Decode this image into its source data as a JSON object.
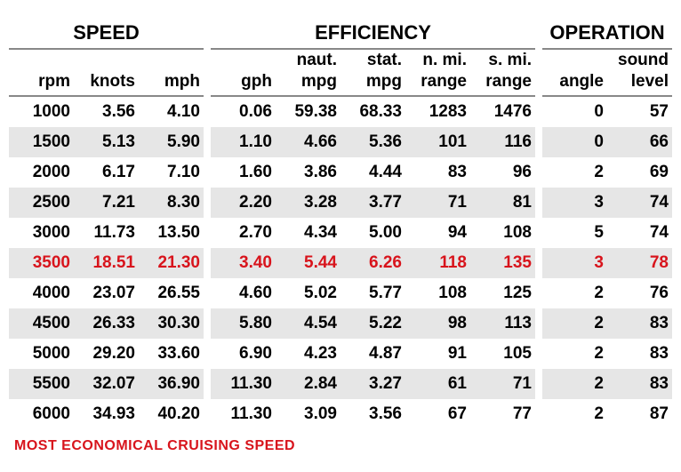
{
  "type": "table",
  "highlight_color": "#d8141c",
  "row_stripe_color": "#e6e6e6",
  "background_color": "#ffffff",
  "font_family": "Arial",
  "groups": [
    {
      "label": "SPEED",
      "span": 3
    },
    {
      "label": "EFFICIENCY",
      "span": 5
    },
    {
      "label": "OPERATION",
      "span": 2
    }
  ],
  "columns": [
    {
      "top": "",
      "bottom": "rpm"
    },
    {
      "top": "",
      "bottom": "knots"
    },
    {
      "top": "",
      "bottom": "mph"
    },
    {
      "top": "",
      "bottom": "gph"
    },
    {
      "top": "naut.",
      "bottom": "mpg"
    },
    {
      "top": "stat.",
      "bottom": "mpg"
    },
    {
      "top": "n. mi.",
      "bottom": "range"
    },
    {
      "top": "s. mi.",
      "bottom": "range"
    },
    {
      "top": "",
      "bottom": "angle"
    },
    {
      "top": "sound",
      "bottom": "level"
    }
  ],
  "rows": [
    {
      "cells": [
        "1000",
        "3.56",
        "4.10",
        "0.06",
        "59.38",
        "68.33",
        "1283",
        "1476",
        "0",
        "57"
      ],
      "highlight": false
    },
    {
      "cells": [
        "1500",
        "5.13",
        "5.90",
        "1.10",
        "4.66",
        "5.36",
        "101",
        "116",
        "0",
        "66"
      ],
      "highlight": false
    },
    {
      "cells": [
        "2000",
        "6.17",
        "7.10",
        "1.60",
        "3.86",
        "4.44",
        "83",
        "96",
        "2",
        "69"
      ],
      "highlight": false
    },
    {
      "cells": [
        "2500",
        "7.21",
        "8.30",
        "2.20",
        "3.28",
        "3.77",
        "71",
        "81",
        "3",
        "74"
      ],
      "highlight": false
    },
    {
      "cells": [
        "3000",
        "11.73",
        "13.50",
        "2.70",
        "4.34",
        "5.00",
        "94",
        "108",
        "5",
        "74"
      ],
      "highlight": false
    },
    {
      "cells": [
        "3500",
        "18.51",
        "21.30",
        "3.40",
        "5.44",
        "6.26",
        "118",
        "135",
        "3",
        "78"
      ],
      "highlight": true
    },
    {
      "cells": [
        "4000",
        "23.07",
        "26.55",
        "4.60",
        "5.02",
        "5.77",
        "108",
        "125",
        "2",
        "76"
      ],
      "highlight": false
    },
    {
      "cells": [
        "4500",
        "26.33",
        "30.30",
        "5.80",
        "4.54",
        "5.22",
        "98",
        "113",
        "2",
        "83"
      ],
      "highlight": false
    },
    {
      "cells": [
        "5000",
        "29.20",
        "33.60",
        "6.90",
        "4.23",
        "4.87",
        "91",
        "105",
        "2",
        "83"
      ],
      "highlight": false
    },
    {
      "cells": [
        "5500",
        "32.07",
        "36.90",
        "11.30",
        "2.84",
        "3.27",
        "61",
        "71",
        "2",
        "83"
      ],
      "highlight": false
    },
    {
      "cells": [
        "6000",
        "34.93",
        "40.20",
        "11.30",
        "3.09",
        "3.56",
        "67",
        "77",
        "2",
        "87"
      ],
      "highlight": false
    }
  ],
  "footer_note": "MOST ECONOMICAL CRUISING SPEED"
}
